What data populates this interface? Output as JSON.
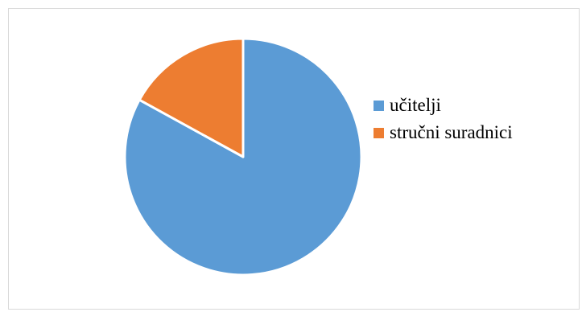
{
  "chart_data": {
    "type": "pie",
    "title": "",
    "labels": [
      "učitelji",
      "stručni suradnici"
    ],
    "values": [
      83,
      17
    ],
    "colors": [
      "#5B9BD5",
      "#ED7D31"
    ],
    "start_angle_deg": 0,
    "direction": "clockwise",
    "legend_position": "right"
  }
}
